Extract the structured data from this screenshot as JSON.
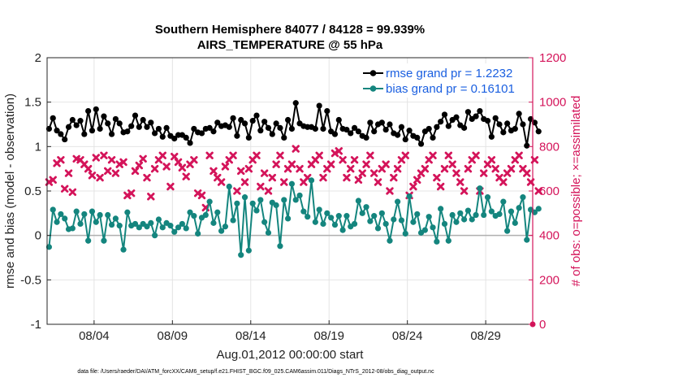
{
  "colors": {
    "rmse": "#000000",
    "bias": "#14857e",
    "obs": "#d4145a",
    "legend_text": "#1a5fe0",
    "zero_line": "#b0b0b0",
    "grid": "#e4e4e4"
  },
  "footnote": "data file: /Users/raeder/DAI/ATM_forcXX/CAM6_setup/f.e21.FHIST_BGC.f09_025.CAM6assim.011/Diags_NTrS_2012-08/obs_diag_output.nc",
  "chart_data": {
    "type": "line",
    "title": "Southern Hemisphere 84077 / 84128 = 99.939%",
    "subtitle": "AIRS_TEMPERATURE @ 55 hPa",
    "xlabel": "Aug.01,2012 00:00:00 start",
    "ylabel": "rmse and bias (model - observation)",
    "y2label": "# of obs: o=possible; ×=assimilated",
    "xlim": [
      1,
      32
    ],
    "ylim": [
      -1,
      2
    ],
    "y2lim": [
      0,
      1200
    ],
    "x_ticks": [
      4,
      9,
      14,
      19,
      24,
      29
    ],
    "x_tick_labels": [
      "08/04",
      "08/09",
      "08/14",
      "08/19",
      "08/24",
      "08/29"
    ],
    "y_ticks": [
      -1,
      -0.5,
      0,
      0.5,
      1,
      1.5,
      2
    ],
    "y_tick_labels": [
      "-1",
      "-0.5",
      "0",
      "0.5",
      "1",
      "1.5",
      "2"
    ],
    "y2_ticks": [
      0,
      200,
      400,
      600,
      800,
      1000,
      1200
    ],
    "y2_tick_labels": [
      "0",
      "200",
      "400",
      "600",
      "800",
      "1000",
      "1200"
    ],
    "grid": true,
    "legend_position": "top-right",
    "x_step_days": 0.25,
    "x_first": 1.125,
    "series": [
      {
        "name": "rmse grand pr = 1.2232",
        "axis": "left",
        "values": [
          1.2,
          1.32,
          1.18,
          1.14,
          1.08,
          1.22,
          1.3,
          1.24,
          1.29,
          1.14,
          1.4,
          1.18,
          1.42,
          1.2,
          1.34,
          1.26,
          1.14,
          1.31,
          1.26,
          1.16,
          1.17,
          1.23,
          1.35,
          1.22,
          1.3,
          1.22,
          1.27,
          1.15,
          1.2,
          1.11,
          1.21,
          1.12,
          1.09,
          1.13,
          1.13,
          1.1,
          1.04,
          1.2,
          1.16,
          1.15,
          1.2,
          1.21,
          1.17,
          1.27,
          1.23,
          1.24,
          1.22,
          1.32,
          1.12,
          1.3,
          1.26,
          1.1,
          1.29,
          1.35,
          1.18,
          1.28,
          1.21,
          1.14,
          1.26,
          1.21,
          1.1,
          1.3,
          1.2,
          1.49,
          1.26,
          1.23,
          1.22,
          1.22,
          1.2,
          1.46,
          1.2,
          1.4,
          1.17,
          1.14,
          1.3,
          1.2,
          1.19,
          1.15,
          1.21,
          1.17,
          1.12,
          1.1,
          1.27,
          1.17,
          1.25,
          1.27,
          1.19,
          1.25,
          1.15,
          1.13,
          1.22,
          1.08,
          1.18,
          1.12,
          1.1,
          1.03,
          1.17,
          1.2,
          1.1,
          1.22,
          1.28,
          1.36,
          1.23,
          1.3,
          1.33,
          1.24,
          1.21,
          1.39,
          1.31,
          1.34,
          1.4,
          1.31,
          1.29,
          1.11,
          1.32,
          1.25,
          1.16,
          1.26,
          1.18,
          1.2,
          1.37,
          1.25,
          1.01,
          1.31,
          1.27,
          1.17
        ]
      },
      {
        "name": "bias grand pr = 0.16101",
        "axis": "left",
        "values": [
          -0.13,
          0.29,
          0.15,
          0.24,
          0.19,
          0.07,
          0.08,
          0.27,
          0.13,
          0.24,
          -0.06,
          0.27,
          0.15,
          0.23,
          -0.06,
          0.23,
          0.12,
          0.19,
          0.11,
          -0.16,
          0.26,
          0.11,
          0.13,
          0.09,
          0.13,
          0.1,
          0.14,
          0.0,
          0.18,
          0.09,
          0.14,
          0.11,
          0.04,
          0.09,
          0.13,
          0.08,
          0.26,
          0.22,
          0.02,
          0.2,
          0.23,
          0.38,
          0.14,
          0.26,
          0.05,
          0.1,
          0.55,
          0.17,
          0.36,
          -0.22,
          0.43,
          -0.17,
          0.36,
          0.28,
          0.4,
          0.15,
          0.03,
          0.37,
          0.34,
          -0.12,
          0.4,
          0.19,
          0.58,
          0.4,
          0.45,
          0.27,
          0.21,
          0.62,
          0.15,
          0.29,
          0.13,
          0.25,
          0.2,
          0.12,
          0.22,
          0.06,
          0.22,
          0.1,
          0.13,
          0.39,
          0.25,
          0.32,
          0.16,
          0.22,
          0.08,
          0.25,
          0.13,
          -0.06,
          0.18,
          0.38,
          0.17,
          0.02,
          0.44,
          0.15,
          0.24,
          0.03,
          0.06,
          0.21,
          0.09,
          -0.07,
          0.3,
          0.13,
          -0.06,
          0.23,
          0.15,
          0.25,
          0.18,
          0.28,
          0.18,
          0.23,
          0.53,
          0.23,
          0.43,
          0.27,
          0.22,
          0.24,
          0.38,
          0.05,
          0.27,
          0.14,
          0.31,
          0.43,
          -0.05,
          0.29,
          0.26,
          0.3
        ]
      },
      {
        "name": "# of obs assimilated",
        "axis": "right",
        "values": [
          640,
          650,
          725,
          740,
          610,
          680,
          595,
          745,
          740,
          720,
          700,
          670,
          750,
          660,
          760,
          690,
          740,
          680,
          720,
          730,
          580,
          590,
          690,
          715,
          745,
          660,
          575,
          700,
          740,
          760,
          710,
          620,
          755,
          730,
          705,
          665,
          720,
          740,
          590,
          580,
          525,
          760,
          690,
          660,
          640,
          710,
          740,
          760,
          600,
          690,
          640,
          700,
          740,
          760,
          620,
          680,
          600,
          660,
          720,
          760,
          640,
          700,
          720,
          790,
          700,
          640,
          660,
          720,
          740,
          760,
          660,
          700,
          720,
          770,
          780,
          740,
          660,
          700,
          740,
          650,
          680,
          720,
          760,
          680,
          640,
          700,
          720,
          600,
          660,
          700,
          740,
          760,
          580,
          620,
          650,
          680,
          700,
          740,
          760,
          660,
          620,
          700,
          760,
          720,
          680,
          640,
          600,
          700,
          740,
          760,
          600,
          680,
          720,
          740,
          700,
          660,
          640,
          680,
          700,
          740,
          760,
          700,
          680,
          640,
          740,
          600
        ]
      }
    ],
    "markers": {
      "rmse": "circle",
      "bias": "circle",
      "obs_assimilated": "x"
    }
  }
}
